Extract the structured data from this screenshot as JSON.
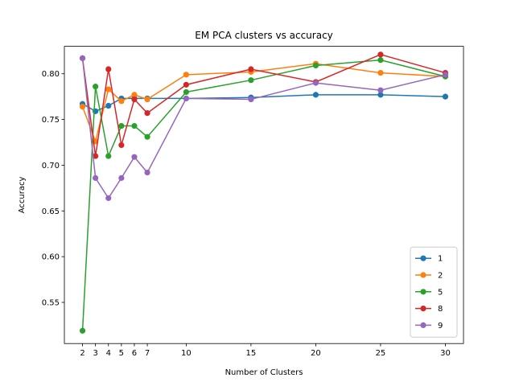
{
  "chart_data": {
    "type": "line",
    "title": "EM PCA clusters vs accuracy",
    "xlabel": "Number of Clusters",
    "ylabel": "Accuracy",
    "x": [
      2,
      3,
      4,
      5,
      6,
      7,
      10,
      15,
      20,
      25,
      30
    ],
    "xticks": [
      2,
      3,
      4,
      5,
      6,
      7,
      10,
      15,
      20,
      25,
      30
    ],
    "yticks": [
      "0.55",
      "0.60",
      "0.65",
      "0.70",
      "0.75",
      "0.80"
    ],
    "xlim": [
      0.6,
      31.4
    ],
    "ylim": [
      0.505,
      0.83
    ],
    "grid": false,
    "legend_position": "lower-right",
    "series": [
      {
        "name": "1",
        "color": "#1f77b4",
        "values": [
          0.767,
          0.759,
          0.765,
          0.773,
          0.773,
          0.773,
          0.773,
          0.774,
          0.777,
          0.777,
          0.775
        ]
      },
      {
        "name": "2",
        "color": "#ff7f0e",
        "values": [
          0.764,
          0.726,
          0.783,
          0.77,
          0.777,
          0.772,
          0.799,
          0.802,
          0.811,
          0.801,
          0.797
        ]
      },
      {
        "name": "5",
        "color": "#2ca02c",
        "values": [
          0.519,
          0.786,
          0.71,
          0.743,
          0.743,
          0.731,
          0.78,
          0.793,
          0.809,
          0.815,
          0.797
        ]
      },
      {
        "name": "8",
        "color": "#d62728",
        "values": [
          0.817,
          0.71,
          0.805,
          0.722,
          0.772,
          0.757,
          0.788,
          0.805,
          0.791,
          0.821,
          0.801
        ]
      },
      {
        "name": "9",
        "color": "#9467bd",
        "values": [
          0.817,
          0.686,
          0.664,
          0.686,
          0.709,
          0.692,
          0.773,
          0.772,
          0.79,
          0.782,
          0.799
        ]
      }
    ]
  }
}
